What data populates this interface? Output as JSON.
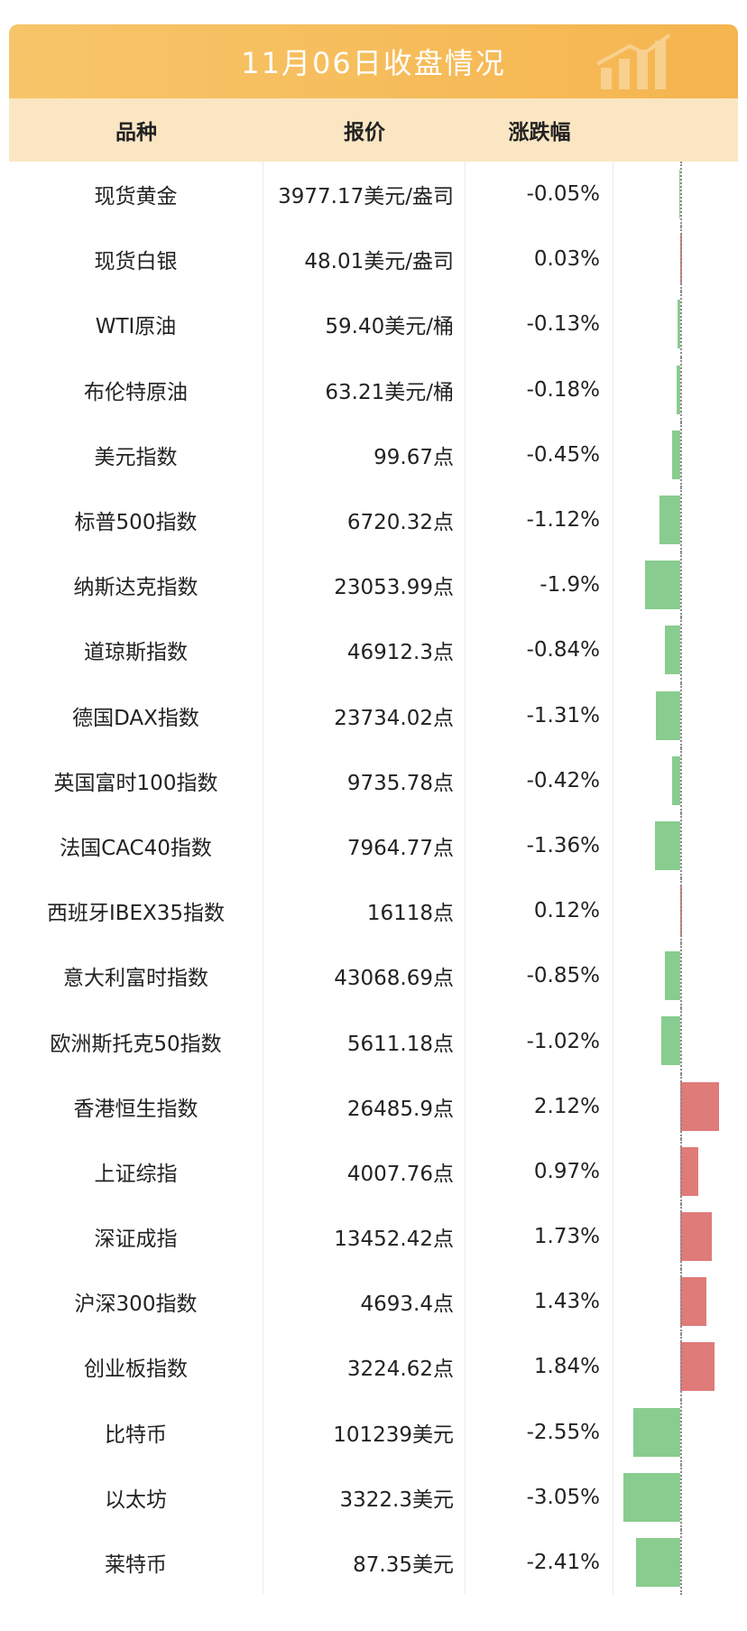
{
  "title": "11月06日收盘情况",
  "header": {
    "col1": "品种",
    "col2": "报价",
    "col3": "涨跌幅"
  },
  "colors": {
    "up": "#df7b79",
    "down": "#89cc8f",
    "title_bg": "#f6bd5c",
    "header_bg": "#fbe6c3"
  },
  "rows": [
    {
      "name": "现货黄金",
      "price": "3977.17美元/盎司",
      "change_text": "-0.05%",
      "change": -0.05
    },
    {
      "name": "现货白银",
      "price": "48.01美元/盎司",
      "change_text": "0.03%",
      "change": 0.03
    },
    {
      "name": "WTI原油",
      "price": "59.40美元/桶",
      "change_text": "-0.13%",
      "change": -0.13
    },
    {
      "name": "布伦特原油",
      "price": "63.21美元/桶",
      "change_text": "-0.18%",
      "change": -0.18
    },
    {
      "name": "美元指数",
      "price": "99.67点",
      "change_text": "-0.45%",
      "change": -0.45
    },
    {
      "name": "标普500指数",
      "price": "6720.32点",
      "change_text": "-1.12%",
      "change": -1.12
    },
    {
      "name": "纳斯达克指数",
      "price": "23053.99点",
      "change_text": "-1.9%",
      "change": -1.9
    },
    {
      "name": "道琼斯指数",
      "price": "46912.3点",
      "change_text": "-0.84%",
      "change": -0.84
    },
    {
      "name": "德国DAX指数",
      "price": "23734.02点",
      "change_text": "-1.31%",
      "change": -1.31
    },
    {
      "name": "英国富时100指数",
      "price": "9735.78点",
      "change_text": "-0.42%",
      "change": -0.42
    },
    {
      "name": "法国CAC40指数",
      "price": "7964.77点",
      "change_text": "-1.36%",
      "change": -1.36
    },
    {
      "name": "西班牙IBEX35指数",
      "price": "16118点",
      "change_text": "0.12%",
      "change": 0.12
    },
    {
      "name": "意大利富时指数",
      "price": "43068.69点",
      "change_text": "-0.85%",
      "change": -0.85
    },
    {
      "name": "欧洲斯托克50指数",
      "price": "5611.18点",
      "change_text": "-1.02%",
      "change": -1.02
    },
    {
      "name": "香港恒生指数",
      "price": "26485.9点",
      "change_text": "2.12%",
      "change": 2.12
    },
    {
      "name": "上证综指",
      "price": "4007.76点",
      "change_text": "0.97%",
      "change": 0.97
    },
    {
      "name": "深证成指",
      "price": "13452.42点",
      "change_text": "1.73%",
      "change": 1.73
    },
    {
      "name": "沪深300指数",
      "price": "4693.4点",
      "change_text": "1.43%",
      "change": 1.43
    },
    {
      "name": "创业板指数",
      "price": "3224.62点",
      "change_text": "1.84%",
      "change": 1.84
    },
    {
      "name": "比特币",
      "price": "101239美元",
      "change_text": "-2.55%",
      "change": -2.55
    },
    {
      "name": "以太坊",
      "price": "3322.3美元",
      "change_text": "-3.05%",
      "change": -3.05
    },
    {
      "name": "莱特币",
      "price": "87.35美元",
      "change_text": "-2.41%",
      "change": -2.41
    }
  ]
}
